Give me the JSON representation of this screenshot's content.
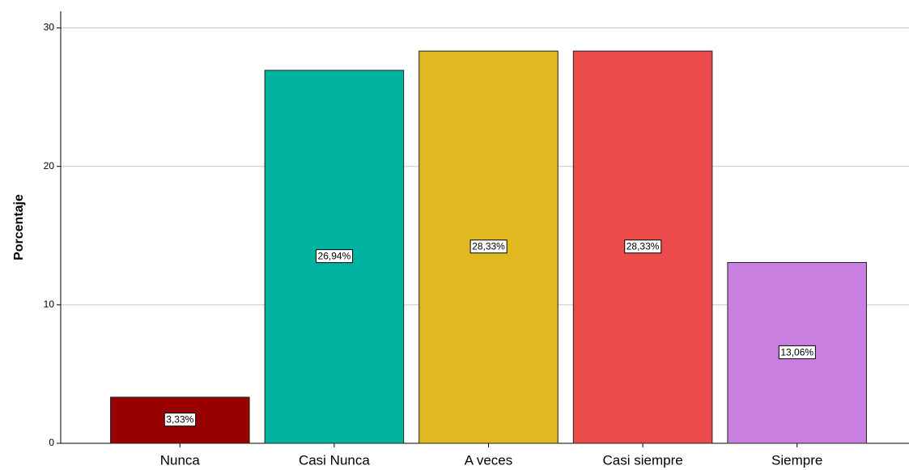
{
  "chart_data": {
    "type": "bar",
    "y_label": "Porcentaje",
    "categories": [
      "Nunca",
      "Casi Nunca",
      "A veces",
      "Casi siempre",
      "Siempre"
    ],
    "values": [
      3.33,
      26.94,
      28.33,
      28.33,
      13.06
    ],
    "value_labels": [
      "3,33%",
      "26,94%",
      "28,33%",
      "28,33%",
      "13,06%"
    ],
    "colors": [
      "#990000",
      "#00b3a0",
      "#e0b820",
      "#eb4b4b",
      "#c97fe0"
    ],
    "ylim": [
      0,
      31.2
    ],
    "yticks": [
      0,
      10,
      20,
      30
    ],
    "grid": true
  }
}
